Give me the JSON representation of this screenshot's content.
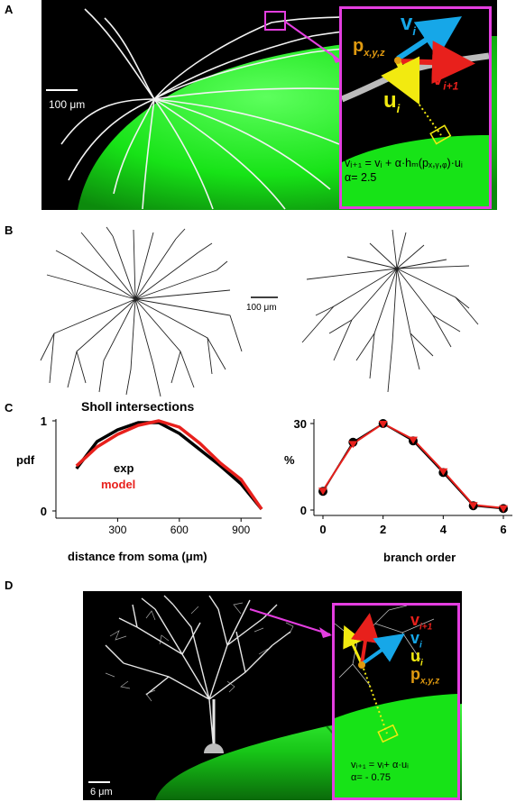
{
  "panels": {
    "a": {
      "label": "A",
      "scale_bar": "100 μm",
      "inset": {
        "vi": "v",
        "vi_sub": "i",
        "pxyz": "p",
        "pxyz_sub": "x,y,z",
        "vi1": "v",
        "vi1_sub": "i+1",
        "ui": "u",
        "ui_sub": "i",
        "equation": "vᵢ₊₁ = vᵢ + α·hₘ(pₓ,ᵧ,ᵩ)·uᵢ",
        "alpha": "α= 2.5"
      },
      "colors": {
        "magenta": "#e43ee0",
        "green": "#17e317",
        "vi": "#16a7e8",
        "vi1": "#e8201c",
        "ui": "#f2ea10",
        "p": "#e09a10"
      }
    },
    "b": {
      "label": "B",
      "scale_bar": "100 μm"
    },
    "c": {
      "label": "C"
    },
    "d": {
      "label": "D",
      "scale_bar": "6 μm",
      "inset": {
        "vi1": "v",
        "vi1_sub": "i+1",
        "vi": "v",
        "vi_sub": "i",
        "ui": "u",
        "ui_sub": "i",
        "pxyz": "p",
        "pxyz_sub": "x,y,z",
        "equation": "vᵢ₊₁ = vᵢ+ α·uᵢ",
        "alpha": "α= - 0.75"
      }
    }
  },
  "chart_data": [
    {
      "type": "line",
      "title": "Sholl intersections",
      "xlabel": "distance from soma (μm)",
      "ylabel": "pdf",
      "xlim": [
        0,
        1000
      ],
      "ylim": [
        0,
        1
      ],
      "x_ticks": [
        "300",
        "600",
        "900"
      ],
      "y_ticks": [
        "0",
        "1"
      ],
      "series": [
        {
          "name": "exp",
          "color": "#000000",
          "x": [
            100,
            200,
            300,
            400,
            500,
            600,
            700,
            800,
            900,
            1000
          ],
          "y": [
            0.47,
            0.77,
            0.9,
            0.98,
            0.98,
            0.86,
            0.68,
            0.5,
            0.3,
            0.02
          ]
        },
        {
          "name": "model",
          "color": "#e8201c",
          "x": [
            100,
            200,
            300,
            400,
            500,
            600,
            700,
            800,
            900,
            1000
          ],
          "y": [
            0.5,
            0.71,
            0.85,
            0.95,
            1.0,
            0.93,
            0.75,
            0.53,
            0.35,
            0.02
          ]
        }
      ]
    },
    {
      "type": "line",
      "xlabel": "branch order",
      "ylabel": "%",
      "xlim": [
        -0.3,
        6.3
      ],
      "ylim": [
        0,
        30
      ],
      "x_ticks": [
        "0",
        "2",
        "4",
        "6"
      ],
      "y_ticks": [
        "0",
        "30"
      ],
      "series": [
        {
          "name": "exp",
          "color": "#000000",
          "marker": "circle",
          "x": [
            0,
            1,
            2,
            3,
            4,
            5,
            6
          ],
          "y": [
            6.5,
            23.5,
            30,
            24,
            13,
            1.5,
            0.5
          ]
        },
        {
          "name": "model",
          "color": "#e8201c",
          "marker": "triangle",
          "x": [
            0,
            1,
            2,
            3,
            4,
            5,
            6
          ],
          "y": [
            6.8,
            23,
            30,
            24.5,
            13.5,
            1.8,
            0.7
          ]
        }
      ]
    }
  ]
}
